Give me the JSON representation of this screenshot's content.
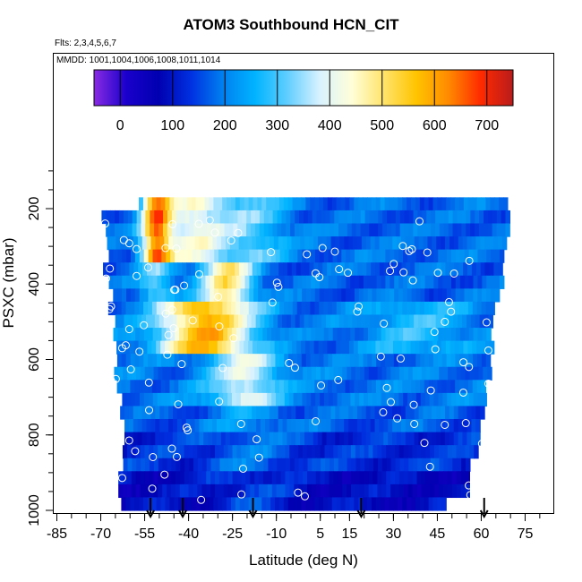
{
  "title": "ATOM3 Southbound HCN_CIT",
  "flights_note": "Flts: 2,3,4,5,6,7",
  "dates_note": "MMDD: 1001,1004,1006,1008,1011,1014",
  "chart_data": {
    "type": "heatmap",
    "title": "ATOM3 Southbound HCN_CIT",
    "xlabel": "Latitude (deg N)",
    "ylabel": "PSXC (mbar)",
    "xlim": [
      -85,
      85
    ],
    "ylim": [
      1000,
      80
    ],
    "y_reversed": true,
    "x_tick_labels": [
      "-85",
      "-70",
      "-55",
      "-40",
      "-25",
      "-10",
      "5",
      "15",
      "30",
      "45",
      "60",
      "75"
    ],
    "y_tick_labels": [
      "200",
      "400",
      "600",
      "800",
      "1000"
    ],
    "colorbar": {
      "range": [
        -50,
        750
      ],
      "tick_labels": [
        "0",
        "100",
        "200",
        "300",
        "400",
        "500",
        "600",
        "700"
      ],
      "colors": [
        "#8a2be2",
        "#1a00cc",
        "#0000b0",
        "#0030e0",
        "#0080f0",
        "#00b4ff",
        "#60ceff",
        "#d8f2ff",
        "#ffffd8",
        "#ffe36a",
        "#ffc400",
        "#ff8a00",
        "#ff2a00",
        "#b81c1c"
      ]
    },
    "profile_markers_lat": [
      -53,
      -42,
      -18,
      19,
      61
    ],
    "grid": false
  }
}
